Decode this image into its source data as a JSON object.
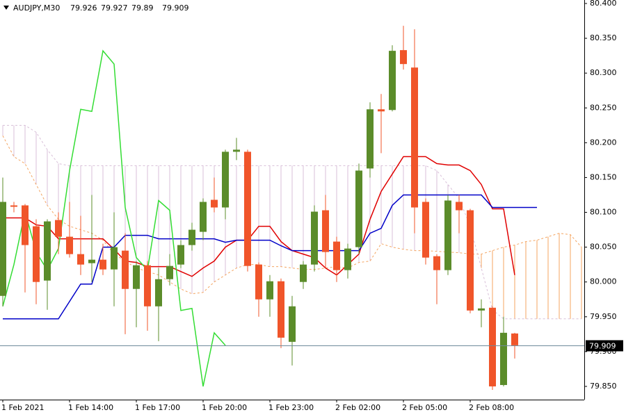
{
  "chart_data": {
    "type": "candlestick",
    "symbol": "AUDJPY,M30",
    "categories": [
      "1 Feb 2021",
      null,
      null,
      null,
      null,
      null,
      "1 Feb 14:00",
      null,
      null,
      null,
      null,
      null,
      "1 Feb 17:00",
      null,
      null,
      null,
      null,
      null,
      "1 Feb 20:00",
      null,
      null,
      null,
      null,
      null,
      "1 Feb 23:00",
      null,
      null,
      null,
      null,
      null,
      "2 Feb 02:00",
      null,
      null,
      null,
      null,
      null,
      "2 Feb 05:00",
      null,
      null,
      null,
      null,
      null,
      "2 Feb 08:00",
      null,
      null,
      null,
      null,
      null,
      null,
      null,
      null,
      null,
      null
    ],
    "open": [
      79.98,
      80.11,
      80.11,
      80.08,
      80.002,
      80.089,
      80.065,
      80.04,
      80.027,
      80.032,
      80.018,
      80.045,
      79.99,
      80.024,
      79.965,
      80.004,
      80.025,
      80.053,
      80.072,
      80.118,
      80.107,
      80.187,
      80.187,
      80.025,
      79.975,
      80.001,
      79.914,
      80.0,
      80.025,
      80.103,
      80.058,
      80.017,
      80.05,
      80.163,
      80.248,
      80.247,
      80.333,
      80.308,
      80.115,
      80.037,
      80.017,
      80.115,
      80.103,
      79.959,
      79.963,
      79.852,
      79.926,
      null,
      null,
      null,
      null,
      null,
      null
    ],
    "high": [
      80.15,
      80.115,
      80.112,
      80.09,
      80.09,
      80.1,
      80.115,
      80.095,
      80.125,
      80.055,
      80.1,
      80.07,
      80.03,
      80.03,
      80.02,
      80.04,
      80.06,
      80.085,
      80.12,
      80.15,
      80.19,
      80.207,
      80.19,
      80.028,
      80.01,
      80.005,
      79.98,
      80.03,
      80.11,
      80.125,
      80.065,
      80.055,
      80.17,
      80.258,
      80.27,
      80.34,
      80.368,
      80.363,
      80.12,
      80.04,
      80.125,
      80.125,
      80.105,
      79.975,
      79.965,
      79.95,
      79.927,
      null,
      null,
      null,
      null,
      null,
      null
    ],
    "low": [
      79.965,
      80.1,
      79.985,
      79.968,
      79.96,
      80.04,
      80.035,
      80.01,
      80.0,
      80.01,
      79.965,
      79.925,
      79.935,
      79.93,
      79.915,
      79.995,
      80.02,
      80.045,
      80.06,
      80.1,
      80.09,
      80.175,
      80.015,
      79.95,
      79.95,
      79.905,
      79.88,
      79.99,
      80.015,
      80.02,
      80.0,
      80.005,
      80.04,
      80.15,
      80.185,
      80.245,
      80.305,
      80.07,
      80.025,
      79.968,
      80.01,
      80.07,
      79.955,
      79.935,
      79.845,
      79.85,
      79.89,
      null,
      null,
      null,
      null,
      null,
      null
    ],
    "close": [
      80.115,
      80.108,
      80.053,
      80.0,
      80.087,
      80.065,
      80.04,
      80.025,
      80.032,
      80.018,
      80.05,
      79.99,
      80.024,
      79.965,
      80.004,
      80.023,
      80.053,
      80.075,
      80.115,
      80.107,
      80.187,
      80.19,
      80.023,
      79.975,
      80.001,
      79.92,
      79.965,
      80.025,
      80.101,
      80.043,
      80.017,
      80.048,
      80.16,
      80.248,
      80.245,
      80.332,
      80.313,
      80.107,
      80.035,
      80.017,
      80.117,
      80.103,
      79.959,
      79.962,
      79.85,
      79.927,
      79.909,
      null,
      null,
      null,
      null,
      null,
      null
    ],
    "up_color": "#5b8c2a",
    "down_color": "#f0552a",
    "lines": [
      {
        "color": "#e00000",
        "values": [
          80.092,
          80.092,
          80.092,
          80.082,
          80.08,
          80.062,
          80.062,
          80.062,
          80.062,
          80.062,
          80.047,
          80.03,
          80.028,
          80.022,
          80.022,
          80.022,
          80.015,
          80.008,
          80.02,
          80.03,
          80.05,
          80.06,
          80.06,
          80.08,
          80.08,
          80.058,
          80.045,
          80.04,
          80.035,
          80.02,
          80.01,
          80.025,
          80.04,
          80.09,
          80.13,
          80.155,
          80.18,
          80.18,
          80.18,
          80.17,
          80.168,
          80.168,
          80.16,
          80.14,
          80.105,
          80.105,
          80.01,
          null,
          null,
          null,
          null,
          null,
          null
        ]
      },
      {
        "color": "#0000c8",
        "values": [
          79.947,
          79.947,
          79.947,
          79.947,
          79.947,
          79.947,
          79.972,
          79.997,
          79.997,
          80.05,
          80.05,
          80.067,
          80.067,
          80.067,
          80.062,
          80.062,
          80.062,
          80.062,
          80.062,
          80.062,
          80.057,
          80.06,
          80.06,
          80.06,
          80.06,
          80.052,
          80.045,
          80.045,
          80.045,
          80.045,
          80.045,
          80.045,
          80.045,
          80.07,
          80.077,
          80.11,
          80.125,
          80.125,
          80.125,
          80.125,
          80.125,
          80.125,
          80.125,
          80.125,
          80.107,
          80.107,
          80.107,
          80.107,
          80.107,
          null,
          null,
          null,
          null
        ]
      },
      {
        "color": "#33dd33",
        "values": [
          79.965,
          80.025,
          80.101,
          80.043,
          80.017,
          80.048,
          80.16,
          80.248,
          80.245,
          80.332,
          80.313,
          80.107,
          80.035,
          80.017,
          80.117,
          80.103,
          79.959,
          79.962,
          79.85,
          79.927,
          79.909,
          null,
          null,
          null,
          null,
          null,
          null,
          null,
          null,
          null,
          null,
          null,
          null,
          null,
          null,
          null,
          null,
          null,
          null,
          null,
          null,
          null,
          null,
          null,
          null,
          null,
          null,
          null,
          null,
          null,
          null,
          null,
          null
        ]
      }
    ],
    "kumo": {
      "span_a": {
        "color": "#f4a460",
        "style": "dash",
        "values": [
          80.21,
          80.18,
          80.17,
          80.14,
          80.11,
          80.09,
          80.08,
          80.075,
          80.07,
          80.06,
          80.04,
          80.03,
          80.02,
          80.015,
          80.01,
          80.0,
          79.99,
          79.983,
          79.985,
          80.0,
          80.01,
          80.02,
          80.025,
          80.025,
          80.022,
          80.022,
          80.02,
          80.018,
          80.018,
          80.02,
          80.022,
          80.02,
          80.028,
          80.03,
          80.055,
          80.05,
          80.047,
          80.045,
          80.045,
          80.044,
          80.043,
          80.042,
          80.04,
          80.04,
          80.045,
          80.05,
          80.053,
          80.058,
          80.06,
          80.065,
          80.07,
          80.068,
          80.05
        ]
      },
      "span_b": {
        "color": "#d8bfd8",
        "style": "dash",
        "values": [
          80.225,
          80.225,
          80.225,
          80.215,
          80.19,
          80.17,
          80.167,
          80.167,
          80.167,
          80.167,
          80.167,
          80.167,
          80.167,
          80.167,
          80.167,
          80.167,
          80.167,
          80.167,
          80.167,
          80.167,
          80.167,
          80.167,
          80.167,
          80.167,
          80.167,
          80.167,
          80.167,
          80.167,
          80.167,
          80.167,
          80.167,
          80.167,
          80.167,
          80.167,
          80.167,
          80.167,
          80.167,
          80.167,
          80.167,
          80.16,
          80.14,
          80.12,
          80.08,
          80.02,
          79.96,
          79.947,
          79.947,
          79.947,
          79.947,
          79.947,
          79.947,
          79.947,
          79.947
        ]
      }
    },
    "ylim": [
      79.831,
      80.405
    ],
    "yticks": [
      {
        "value": 80.4,
        "label": "80.400"
      },
      {
        "value": 80.35,
        "label": "80.350"
      },
      {
        "value": 80.3,
        "label": "80.300"
      },
      {
        "value": 80.25,
        "label": "80.250"
      },
      {
        "value": 80.2,
        "label": "80.200"
      },
      {
        "value": 80.15,
        "label": "80.150"
      },
      {
        "value": 80.1,
        "label": "80.100"
      },
      {
        "value": 80.05,
        "label": "80.050"
      },
      {
        "value": 80,
        "label": "80.000"
      },
      {
        "value": 79.95,
        "label": "79.950"
      },
      {
        "value": 79.9,
        "label": "79.900"
      },
      {
        "value": 79.85,
        "label": "79.850"
      }
    ],
    "grid": false,
    "price_line_color": "#6e8a9a"
  }
}
